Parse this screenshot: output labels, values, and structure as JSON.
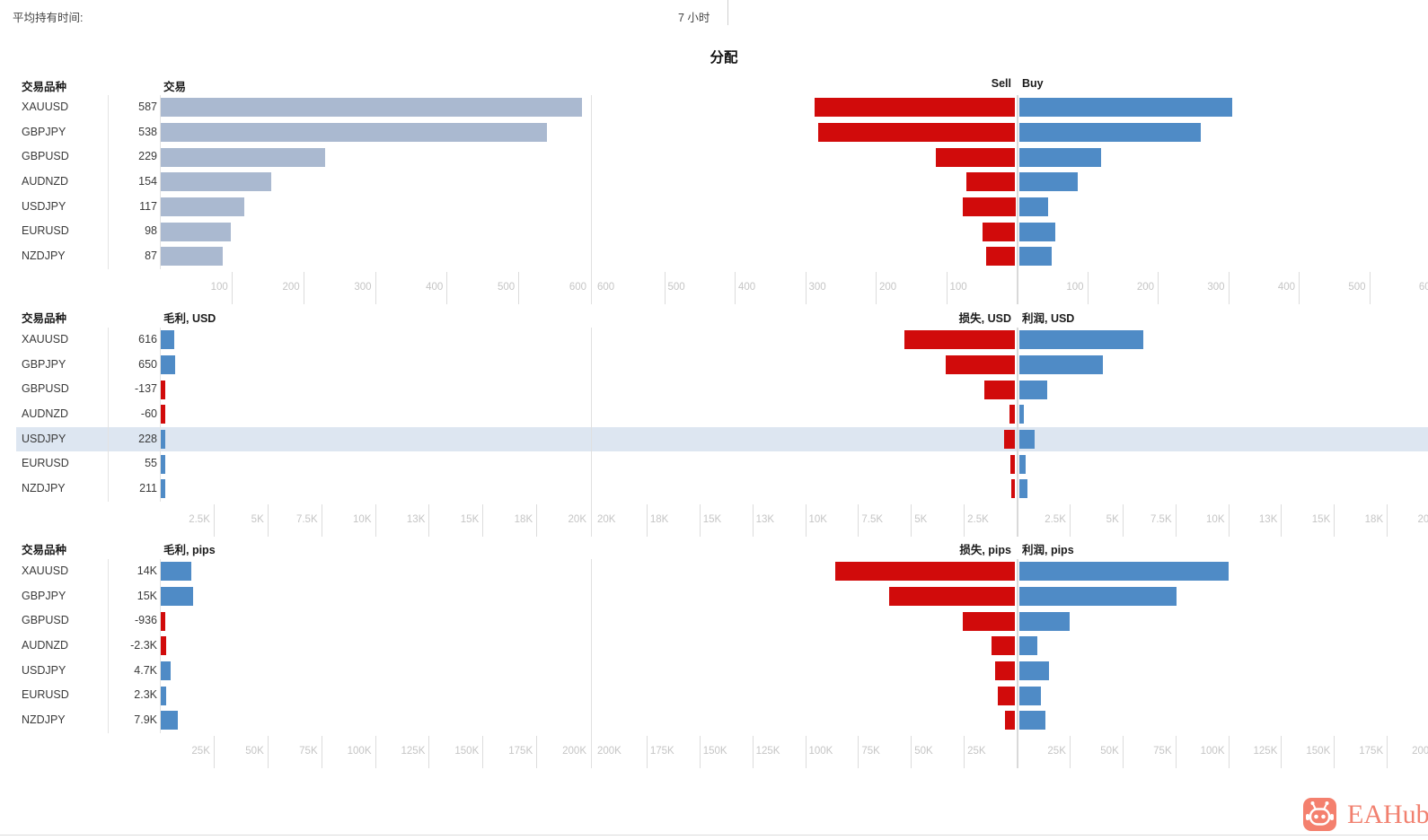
{
  "header": {
    "avg_hold_label": "平均持有时间:",
    "avg_hold_value": "7 小时"
  },
  "title": "分配",
  "branding": {
    "logo_text": "EAHub"
  },
  "colors": {
    "trades_bar": "#aab9d0",
    "loss_red": "#d10b0b",
    "profit_blue": "#4f8bc6",
    "row_highlight": "#dde6f1",
    "axis_text": "#c5c5c5",
    "coral": "#f4806e"
  },
  "chart_data": [
    {
      "type": "bar",
      "symbol_header": "交易品种",
      "categories": [
        "XAUUSD",
        "GBPJPY",
        "GBPUSD",
        "AUDNZD",
        "USDJPY",
        "EURUSD",
        "NZDJPY"
      ],
      "total_series": {
        "name": "交易",
        "values": [
          587,
          538,
          229,
          154,
          117,
          98,
          87
        ],
        "labels": [
          "587",
          "538",
          "229",
          "154",
          "117",
          "98",
          "87"
        ]
      },
      "split_series": [
        {
          "name": "Sell",
          "direction": "left",
          "values": [
            285,
            280,
            113,
            70,
            75,
            47,
            41
          ]
        },
        {
          "name": "Buy",
          "direction": "right",
          "values": [
            302,
            258,
            116,
            84,
            42,
            51,
            46
          ]
        }
      ],
      "axis": {
        "max": 600,
        "step": 100,
        "tick_labels": [
          "100",
          "200",
          "300",
          "400",
          "500",
          "600"
        ]
      },
      "highlight_row": null
    },
    {
      "type": "bar",
      "symbol_header": "交易品种",
      "categories": [
        "XAUUSD",
        "GBPJPY",
        "GBPUSD",
        "AUDNZD",
        "USDJPY",
        "EURUSD",
        "NZDJPY"
      ],
      "total_series": {
        "name": "毛利, USD",
        "values": [
          616,
          650,
          -137,
          -60,
          228,
          55,
          211
        ],
        "labels": [
          "616",
          "650",
          "-137",
          "-60",
          "228",
          "55",
          "211"
        ]
      },
      "split_series": [
        {
          "name": "损失, USD",
          "direction": "left",
          "values": [
            5240,
            3300,
            1480,
            290,
            520,
            250,
            200
          ]
        },
        {
          "name": "利润, USD",
          "direction": "right",
          "values": [
            5860,
            3950,
            1340,
            230,
            748,
            305,
            411
          ]
        }
      ],
      "axis": {
        "max": 20000,
        "step": 2500,
        "tick_labels": [
          "2.5K",
          "5K",
          "7.5K",
          "10K",
          "13K",
          "15K",
          "18K",
          "20K"
        ]
      },
      "highlight_row": "USDJPY"
    },
    {
      "type": "bar",
      "symbol_header": "交易品种",
      "categories": [
        "XAUUSD",
        "GBPJPY",
        "GBPUSD",
        "AUDNZD",
        "USDJPY",
        "EURUSD",
        "NZDJPY"
      ],
      "total_series": {
        "name": "毛利, pips",
        "values": [
          14000,
          15000,
          -936,
          -2300,
          4700,
          2300,
          7900
        ],
        "labels": [
          "14K",
          "15K",
          "-936",
          "-2.3K",
          "4.7K",
          "2.3K",
          "7.9K"
        ]
      },
      "split_series": [
        {
          "name": "损失, pips",
          "direction": "left",
          "values": [
            85000,
            59500,
            24700,
            11200,
            9500,
            8200,
            4800
          ]
        },
        {
          "name": "利润, pips",
          "direction": "right",
          "values": [
            99000,
            74500,
            23800,
            8900,
            14200,
            10500,
            12700
          ]
        }
      ],
      "axis": {
        "max": 200000,
        "step": 25000,
        "tick_labels": [
          "25K",
          "50K",
          "75K",
          "100K",
          "125K",
          "150K",
          "175K",
          "200K"
        ]
      },
      "highlight_row": null
    }
  ]
}
